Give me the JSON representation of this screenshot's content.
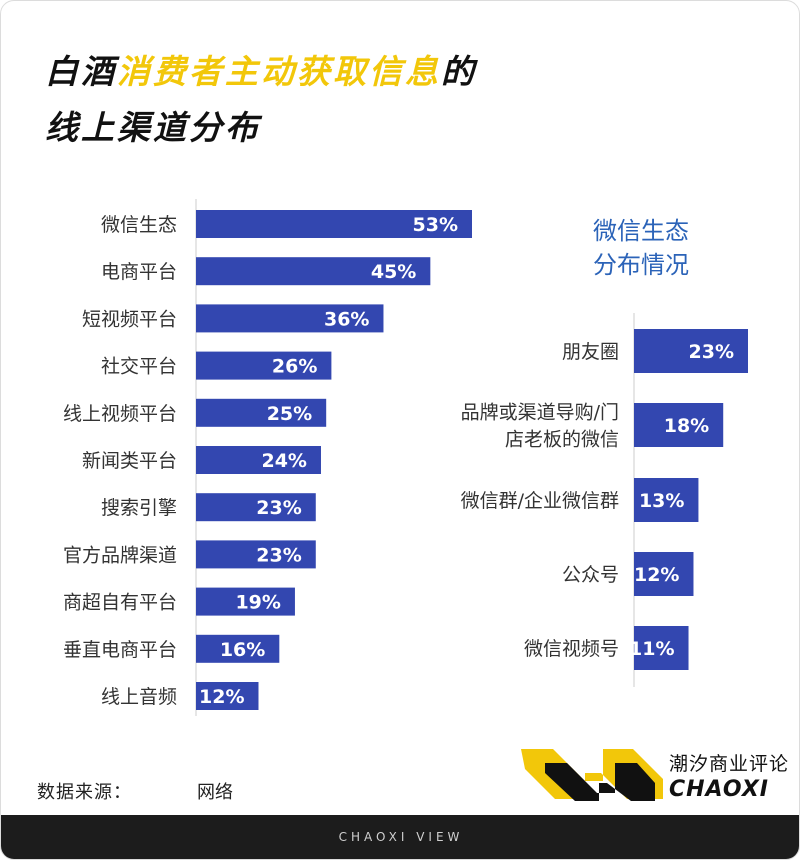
{
  "title": {
    "line1_prefix": "白酒",
    "line1_highlight": "消费者主动获取信息",
    "line1_suffix": "的",
    "line2": "线上渠道分布"
  },
  "chart_data": [
    {
      "type": "bar",
      "orientation": "horizontal",
      "title": "",
      "categories": [
        "微信生态",
        "电商平台",
        "短视频平台",
        "社交平台",
        "线上视频平台",
        "新闻类平台",
        "搜索引擎",
        "官方品牌渠道",
        "商超自有平台",
        "垂直电商平台",
        "线上音频"
      ],
      "values": [
        53,
        45,
        36,
        26,
        25,
        24,
        23,
        23,
        19,
        16,
        12
      ],
      "labels": [
        "53%",
        "45%",
        "36%",
        "26%",
        "25%",
        "24%",
        "23%",
        "23%",
        "19%",
        "16%",
        "12%"
      ],
      "unit": "%",
      "xlim": [
        0,
        100
      ],
      "grid": false,
      "bar_color": "#3347b0"
    },
    {
      "type": "bar",
      "orientation": "horizontal",
      "title_lines": [
        "微信生态",
        "分布情况"
      ],
      "categories": [
        [
          "朋友圈"
        ],
        [
          "品牌或渠道导购/门",
          "店老板的微信"
        ],
        [
          "微信群/企业微信群"
        ],
        [
          "公众号"
        ],
        [
          "微信视频号"
        ]
      ],
      "values": [
        23,
        18,
        13,
        12,
        11
      ],
      "labels": [
        "23%",
        "18%",
        "13%",
        "12%",
        "11%"
      ],
      "unit": "%",
      "xlim": [
        0,
        100
      ],
      "grid": false,
      "bar_color": "#3347b0"
    }
  ],
  "source": {
    "label": "数据来源：",
    "value": "网络"
  },
  "brand": {
    "name_cn": "潮汐商业评论",
    "name_en": "CHAOXI",
    "footer": "CHAOXI VIEW"
  },
  "colors": {
    "accent": "#f2c70a",
    "bar": "#3347b0",
    "title_blue": "#2b63b8",
    "footer_bg": "#1c1c1c"
  }
}
